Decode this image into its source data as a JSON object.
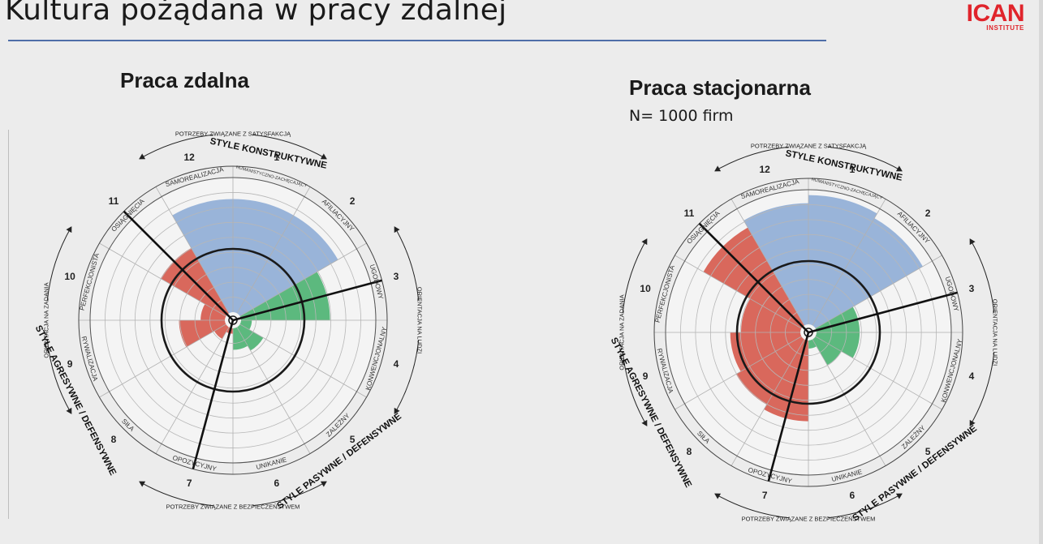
{
  "slide": {
    "title": "Kultura pożądana w pracy zdalnej",
    "logo_main": "ICAN",
    "logo_sub": "INSTITUTE",
    "accent_color": "#4f6ea8",
    "logo_color": "#e0242b"
  },
  "palette": {
    "constructive": "#99b4d9",
    "passive": "#5cb97e",
    "aggressive": "#d9685c"
  },
  "labels": {
    "top_arc": "POTRZEBY ZWIĄZANE Z SATYSFAKCJĄ",
    "bottom_arc": "POTRZEBY ZWIĄZANE Z BEZPIECZEŃSTWEM",
    "left_arc": "ORIENTACJA NA ZADANIA",
    "right_arc": "ORIENTACJA NA LUDZI",
    "constructive": "STYLE KONSTRUKTYWNE",
    "passive": "STYLE PASYWNE / DEFENSYWNE",
    "aggressive": "STYLE AGRESYWNE / DEFENSYWNE"
  },
  "styles": [
    {
      "n": "1",
      "name": "HUMANISTYCZNO-ZACHĘCAJĄCY"
    },
    {
      "n": "2",
      "name": "AFILIACYJNY"
    },
    {
      "n": "3",
      "name": "UGODOWY"
    },
    {
      "n": "4",
      "name": "KONWENCJONALNY"
    },
    {
      "n": "5",
      "name": "ZALEŻNY"
    },
    {
      "n": "6",
      "name": "UNIKANIE"
    },
    {
      "n": "7",
      "name": "OPOZYCYJNY"
    },
    {
      "n": "8",
      "name": "SIŁA"
    },
    {
      "n": "9",
      "name": "RYWALIZACJA"
    },
    {
      "n": "10",
      "name": "PERFEKCJONISTA"
    },
    {
      "n": "11",
      "name": "OSIĄGNIĘCIA"
    },
    {
      "n": "12",
      "name": "SAMOREALIZACJA"
    }
  ],
  "panels": [
    {
      "title": "Praca zdalna",
      "subtitle": "",
      "levels": [
        0.84,
        0.84,
        0.66,
        0.08,
        0.2,
        0.16,
        0.04,
        0.1,
        0.34,
        0.18,
        0.56,
        0.84
      ]
    },
    {
      "title": "Praca stacjonarna",
      "subtitle": "N= 1000 firm",
      "levels": [
        0.96,
        0.92,
        0.32,
        0.32,
        0.22,
        0.06,
        0.6,
        0.56,
        0.52,
        0.44,
        0.84,
        0.9
      ]
    }
  ]
}
